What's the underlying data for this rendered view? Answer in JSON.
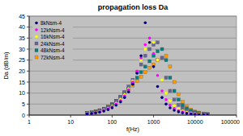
{
  "chart_data": {
    "type": "scatter",
    "title": "propagation loss Da",
    "x_label": "f(Hz)",
    "y_label": "Da (dB/m)",
    "log": "x",
    "grid": true,
    "legend": "upper left",
    "xlim": [
      1,
      100000
    ],
    "xticks": [
      1,
      10,
      100,
      1000,
      10000,
      100000
    ],
    "ylim": [
      0,
      45
    ],
    "yticks": [
      0,
      5,
      10,
      15,
      20,
      25,
      30,
      35,
      40,
      45
    ],
    "x": [
      25,
      32,
      40,
      50,
      63,
      80,
      100,
      125,
      160,
      200,
      250,
      315,
      400,
      500,
      630,
      800,
      1000,
      1250,
      1600,
      2000,
      2500,
      3150,
      4000,
      5000,
      6300,
      8000,
      10000,
      12500,
      16000,
      20000
    ],
    "series": [
      {
        "name": "8kNsm-4",
        "color": "#000080",
        "marker": "circle",
        "values": [
          0.5,
          0.7,
          1,
          1.3,
          1.8,
          2.5,
          3.3,
          4.5,
          6,
          8,
          10.5,
          14,
          19,
          27,
          42,
          33,
          22,
          13,
          8,
          5,
          3.3,
          2.2,
          1.5,
          1,
          0.7,
          0.5,
          0.3,
          0.2,
          0.15,
          0.1
        ]
      },
      {
        "name": "12kNsm-4",
        "color": "#ff00ff",
        "marker": "circle",
        "values": [
          0.6,
          0.8,
          1.1,
          1.5,
          2,
          2.8,
          3.7,
          5,
          6.6,
          8.7,
          11.5,
          15,
          20,
          26,
          32,
          35,
          28,
          18,
          11,
          7,
          4.5,
          3,
          2,
          1.4,
          0.9,
          0.6,
          0.4,
          0.3,
          0.2,
          0.15
        ]
      },
      {
        "name": "16kNsm-4",
        "color": "#ffff00",
        "marker": "circle",
        "values": [
          0.7,
          0.9,
          1.2,
          1.6,
          2.2,
          3,
          4,
          5.4,
          7.2,
          9.3,
          12,
          15.5,
          20,
          25,
          30,
          33,
          33,
          25,
          16,
          10,
          6.5,
          4.3,
          2.8,
          1.9,
          1.3,
          0.9,
          0.6,
          0.4,
          0.3,
          0.2
        ]
      },
      {
        "name": "24kNsm-4",
        "color": "#666699",
        "marker": "square",
        "values": [
          0.8,
          1,
          1.4,
          1.9,
          2.6,
          3.5,
          4.7,
          6.3,
          8.3,
          10.5,
          13,
          16,
          19.5,
          23,
          27,
          30,
          32,
          33,
          26,
          17,
          11,
          7,
          4.6,
          3,
          2,
          1.3,
          0.9,
          0.6,
          0.4,
          0.3
        ]
      },
      {
        "name": "48kNsm-4",
        "color": "#008080",
        "marker": "square",
        "values": [
          0.9,
          1.2,
          1.6,
          2.1,
          2.8,
          3.7,
          4.9,
          6.4,
          8.2,
          10,
          12,
          14.5,
          17,
          19.5,
          22,
          24.5,
          27,
          29,
          30,
          25,
          17,
          11,
          7,
          4.5,
          3,
          2,
          1.3,
          0.9,
          0.6,
          0.4
        ]
      },
      {
        "name": "72kNsm-4",
        "color": "#ff9900",
        "marker": "square",
        "values": [
          1,
          1.3,
          1.7,
          2.2,
          2.9,
          3.8,
          5,
          6.4,
          8,
          9.7,
          11.5,
          13.5,
          15.5,
          17.5,
          19.5,
          21.5,
          23,
          25,
          26,
          27,
          22,
          15,
          9.5,
          6,
          3.9,
          2.5,
          1.6,
          1.1,
          0.7,
          0.5
        ]
      }
    ]
  }
}
